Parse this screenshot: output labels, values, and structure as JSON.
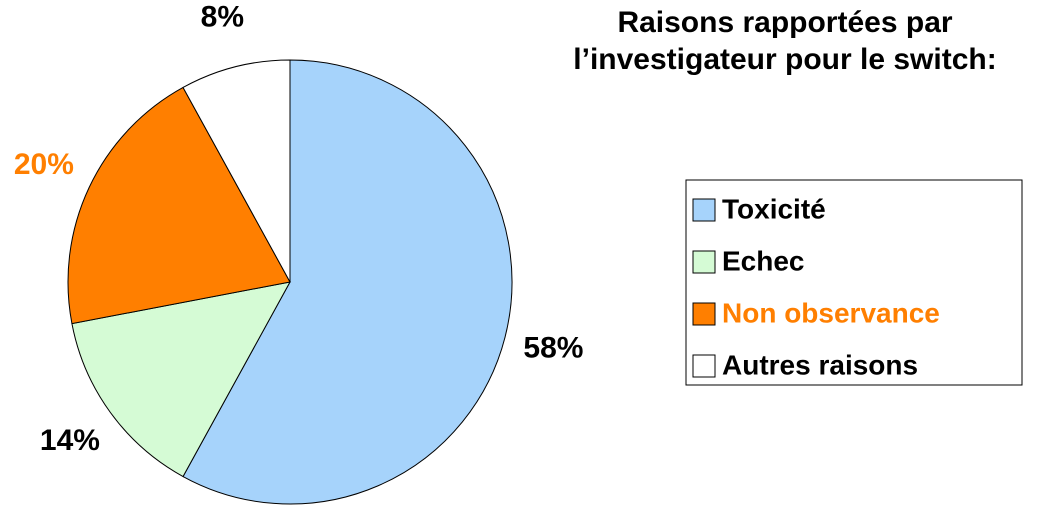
{
  "chart_data": {
    "type": "pie",
    "title": "Raisons rapportées par l’investigateur pour le switch:",
    "categories": [
      "Toxicité",
      "Echec",
      "Non observance",
      "Autres raisons"
    ],
    "values": [
      58,
      14,
      20,
      8
    ],
    "value_labels": [
      "58%",
      "14%",
      "20%",
      "8%"
    ],
    "colors": [
      "#a6d3fb",
      "#d5fbd5",
      "#ff7f00",
      "#ffffff"
    ],
    "label_colors": [
      "#000000",
      "#000000",
      "#ff7f00",
      "#000000"
    ],
    "legend": "right"
  }
}
